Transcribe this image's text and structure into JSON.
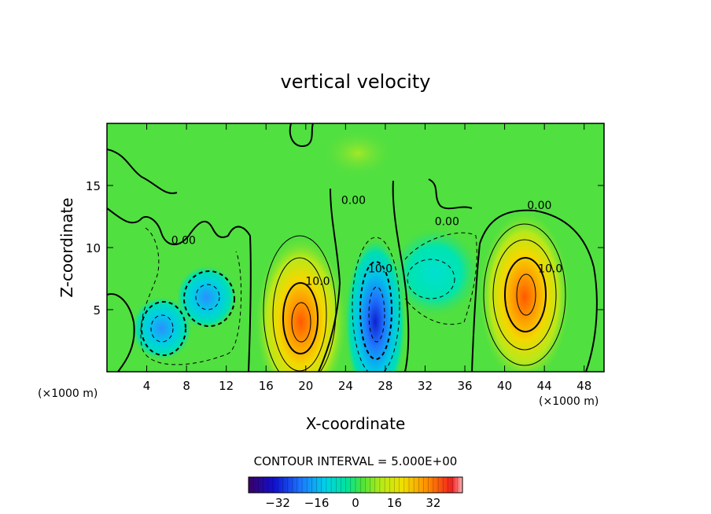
{
  "chart_data": {
    "type": "heatmap",
    "title": "vertical velocity",
    "xlabel": "X-coordinate",
    "ylabel": "Z-coordinate",
    "x_unit": "(×1000 m)",
    "y_unit": "(×1000 m)",
    "xlim": [
      0,
      50
    ],
    "ylim": [
      0,
      20
    ],
    "x_ticks": [
      4,
      8,
      12,
      16,
      20,
      24,
      28,
      32,
      36,
      40,
      44,
      48
    ],
    "y_ticks": [
      5,
      10,
      15
    ],
    "contour_interval_label": "CONTOUR INTERVAL = 5.000E+00",
    "contour_labels": [
      {
        "text": "0.00",
        "x": 7.7,
        "y": 10.3
      },
      {
        "text": "0.00",
        "x": 24.8,
        "y": 13.5
      },
      {
        "text": "0.00",
        "x": 34.2,
        "y": 11.8
      },
      {
        "text": "0.00",
        "x": 43.5,
        "y": 13.1
      },
      {
        "text": "10.0",
        "x": 21.2,
        "y": 7.0
      },
      {
        "text": "10.0",
        "x": 27.5,
        "y": 8.0
      },
      {
        "text": "10.0",
        "x": 44.6,
        "y": 8.0
      }
    ],
    "colorbar": {
      "range": [
        -44,
        44
      ],
      "tick_labels": [
        "-32",
        "-16",
        "0",
        "16",
        "32"
      ],
      "tick_values": [
        -32,
        -16,
        0,
        16,
        32
      ]
    },
    "features": [
      {
        "x": 19.5,
        "y": 4.0,
        "value": 34
      },
      {
        "x": 42.0,
        "y": 6.0,
        "value": 30
      },
      {
        "x": 27.0,
        "y": 4.0,
        "value": -36
      },
      {
        "x": 10.0,
        "y": 6.0,
        "value": -20
      },
      {
        "x": 5.5,
        "y": 3.5,
        "value": -18
      },
      {
        "x": 33.0,
        "y": 8.0,
        "value": -10
      }
    ]
  }
}
